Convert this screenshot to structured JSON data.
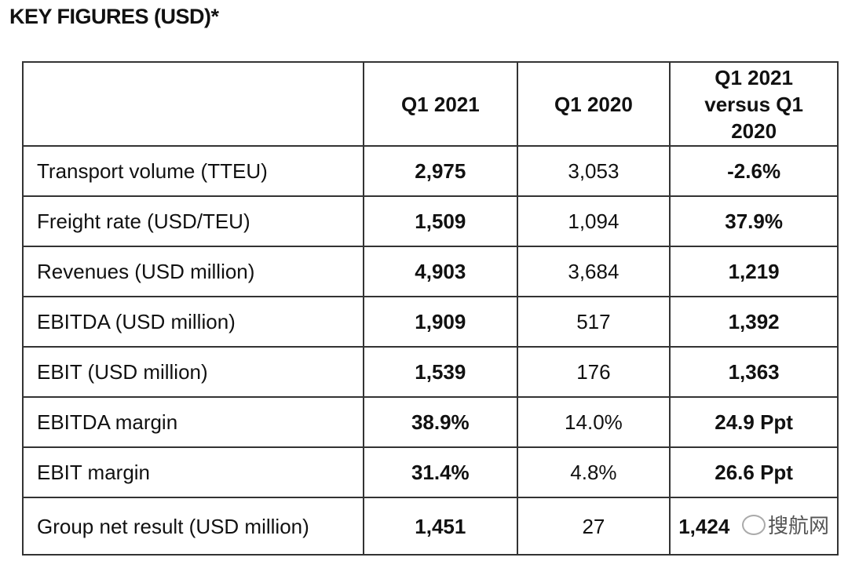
{
  "title": "KEY FIGURES (USD)*",
  "table": {
    "headers": [
      "",
      "Q1 2021",
      "Q1 2020",
      "Q1 2021 versus Q1 2020"
    ],
    "rows": [
      [
        "Transport volume (TTEU)",
        "2,975",
        "3,053",
        "-2.6%"
      ],
      [
        "Freight rate (USD/TEU)",
        "1,509",
        "1,094",
        "37.9%"
      ],
      [
        "Revenues (USD million)",
        "4,903",
        "3,684",
        "1,219"
      ],
      [
        "EBITDA (USD million)",
        "1,909",
        "517",
        "1,392"
      ],
      [
        "EBIT (USD million)",
        "1,539",
        "176",
        "1,363"
      ],
      [
        "EBITDA margin",
        "38.9%",
        "14.0%",
        "24.9 Ppt"
      ],
      [
        "EBIT margin",
        "31.4%",
        "4.8%",
        "26.6 Ppt"
      ],
      [
        "Group net result (USD million)",
        "1,451",
        "27",
        "1,424"
      ]
    ]
  },
  "watermark": {
    "text": "搜航网",
    "icon": "wechat-icon"
  }
}
